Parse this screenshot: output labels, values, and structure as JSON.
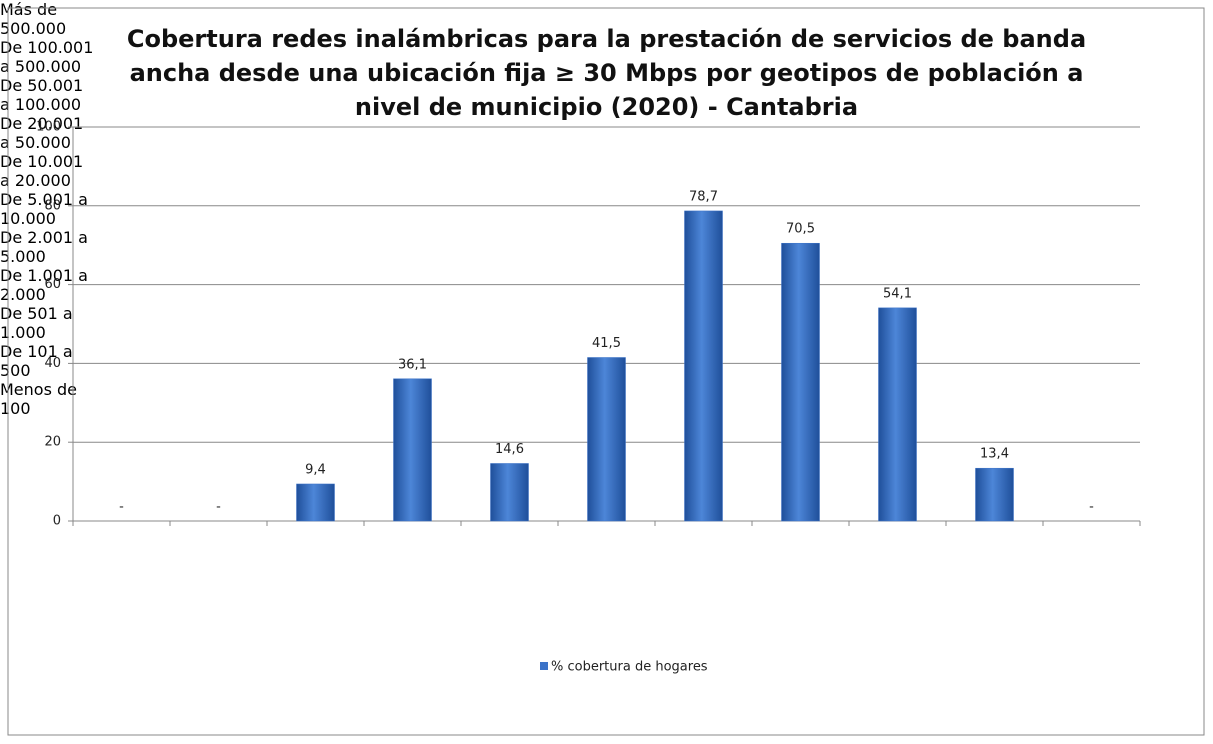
{
  "chart_data": {
    "type": "bar",
    "title": "Cobertura redes inalámbricas para la prestación de servicios de banda ancha desde una ubicación fija ≥ 30 Mbps por geotipos de población a nivel de municipio (2020) - Cantabria",
    "categories": [
      "Más de 500.000",
      "De 100.001 a 500.000",
      "De 50.001 a 100.000",
      "De 20.001 a 50.000",
      "De 10.001 a 20.000",
      "De 5.001 a 10.000",
      "De 2.001 a 5.000",
      "De 1.001 a 2.000",
      "De 501 a 1.000",
      "De 101 a 500",
      "Menos de 100"
    ],
    "series": [
      {
        "name": "% cobertura de hogares",
        "color": "#3c73c8",
        "values": [
          null,
          null,
          9.4,
          36.1,
          14.6,
          41.5,
          78.7,
          70.5,
          54.1,
          13.4,
          null
        ],
        "value_labels": [
          "-",
          "-",
          "9,4",
          "36,1",
          "14,6",
          "41,5",
          "78,7",
          "70,5",
          "54,1",
          "13,4",
          "-"
        ]
      }
    ],
    "ylim": [
      0,
      100
    ],
    "yticks": [
      0,
      20,
      40,
      60,
      80,
      100
    ],
    "grid": true,
    "legend": "bottom"
  }
}
